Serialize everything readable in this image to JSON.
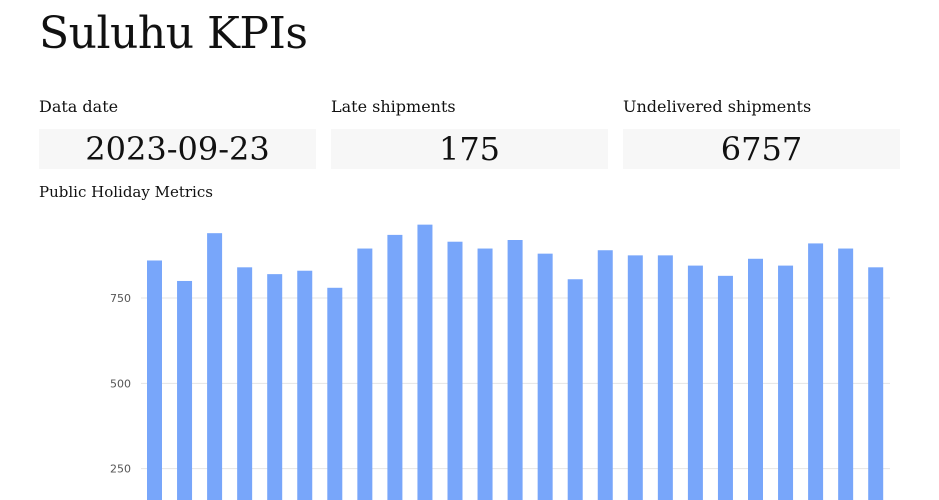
{
  "page": {
    "title": "Suluhu KPIs"
  },
  "kpis": [
    {
      "label": "Data date",
      "value": "2023-09-23"
    },
    {
      "label": "Late shipments",
      "value": "175"
    },
    {
      "label": "Undelivered shipments",
      "value": "6757"
    }
  ],
  "chart_data": {
    "type": "bar",
    "title": "Public Holiday Metrics",
    "xlabel": "",
    "ylabel": "",
    "grid": true,
    "y_ticks": [
      250,
      500,
      750
    ],
    "ylim": [
      0,
      1000
    ],
    "values": [
      860,
      800,
      940,
      840,
      820,
      830,
      780,
      895,
      935,
      965,
      915,
      895,
      920,
      880,
      805,
      890,
      875,
      875,
      845,
      815,
      865,
      845,
      910,
      895,
      840
    ],
    "color": "#78a6fa"
  }
}
